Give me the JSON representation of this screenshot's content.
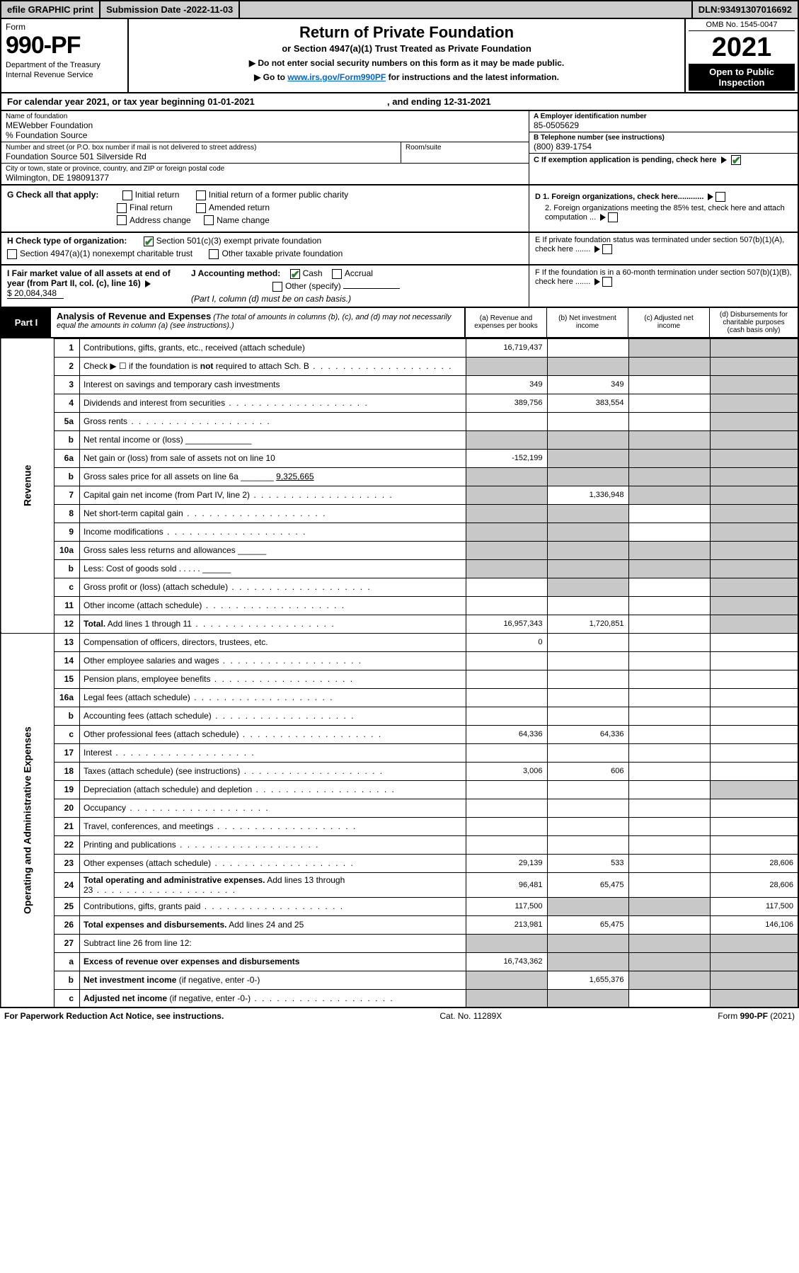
{
  "topbar": {
    "efile": "efile GRAPHIC print",
    "subdate_label": "Submission Date - ",
    "subdate": "2022-11-03",
    "dln_label": "DLN: ",
    "dln": "93491307016692"
  },
  "header": {
    "form_label": "Form",
    "form_num": "990-PF",
    "dept": "Department of the Treasury",
    "irs": "Internal Revenue Service",
    "title": "Return of Private Foundation",
    "subtitle": "or Section 4947(a)(1) Trust Treated as Private Foundation",
    "note1": "▶ Do not enter social security numbers on this form as it may be made public.",
    "note2_pre": "▶ Go to ",
    "note2_link": "www.irs.gov/Form990PF",
    "note2_post": " for instructions and the latest information.",
    "omb": "OMB No. 1545-0047",
    "year": "2021",
    "open": "Open to Public Inspection"
  },
  "cal": {
    "text_pre": "For calendar year 2021, or tax year beginning ",
    "begin": "01-01-2021",
    "mid": ", and ending ",
    "end": "12-31-2021"
  },
  "entity": {
    "name_lbl": "Name of foundation",
    "name": "MEWebber Foundation",
    "src": "% Foundation Source",
    "addr_lbl": "Number and street (or P.O. box number if mail is not delivered to street address)",
    "addr": "Foundation Source 501 Silverside Rd",
    "room_lbl": "Room/suite",
    "city_lbl": "City or town, state or province, country, and ZIP or foreign postal code",
    "city": "Wilmington, DE  198091377",
    "ein_lbl": "A Employer identification number",
    "ein": "85-0505629",
    "tel_lbl": "B Telephone number (see instructions)",
    "tel": "(800) 839-1754",
    "c_lbl": "C If exemption application is pending, check here"
  },
  "g": {
    "label": "G Check all that apply:",
    "o1": "Initial return",
    "o2": "Initial return of a former public charity",
    "o3": "Final return",
    "o4": "Amended return",
    "o5": "Address change",
    "o6": "Name change"
  },
  "d": {
    "d1": "D 1. Foreign organizations, check here............",
    "d2": "2. Foreign organizations meeting the 85% test, check here and attach computation ...",
    "e": "E  If private foundation status was terminated under section 507(b)(1)(A), check here .......",
    "f": "F  If the foundation is in a 60-month termination under section 507(b)(1)(B), check here ......."
  },
  "h": {
    "label": "H Check type of organization:",
    "o1": "Section 501(c)(3) exempt private foundation",
    "o2": "Section 4947(a)(1) nonexempt charitable trust",
    "o3": "Other taxable private foundation"
  },
  "i": {
    "label": "I Fair market value of all assets at end of year (from Part II, col. (c), line 16)",
    "value": "$  20,084,348"
  },
  "j": {
    "label": "J Accounting method:",
    "o1": "Cash",
    "o2": "Accrual",
    "o3": "Other (specify)",
    "note": "(Part I, column (d) must be on cash basis.)"
  },
  "part1": {
    "label": "Part I",
    "title": "Analysis of Revenue and Expenses",
    "title_note": " (The total of amounts in columns (b), (c), and (d) may not necessarily equal the amounts in column (a) (see instructions).)",
    "col_a": "(a)  Revenue and expenses per books",
    "col_b": "(b)  Net investment income",
    "col_c": "(c)  Adjusted net income",
    "col_d": "(d)  Disbursements for charitable purposes (cash basis only)"
  },
  "sides": {
    "rev": "Revenue",
    "exp": "Operating and Administrative Expenses"
  },
  "rows": [
    {
      "n": "1",
      "d": "Contributions, gifts, grants, etc., received (attach schedule)",
      "a": "16,719,437",
      "b": "",
      "c": "s",
      "dcol": "s"
    },
    {
      "n": "2",
      "d": "Check ▶ ☐ if the foundation is <b>not</b> required to attach Sch. B",
      "dots": true,
      "a": "s",
      "b": "s",
      "c": "s",
      "dcol": "s"
    },
    {
      "n": "3",
      "d": "Interest on savings and temporary cash investments",
      "a": "349",
      "b": "349",
      "c": "",
      "dcol": "s"
    },
    {
      "n": "4",
      "d": "Dividends and interest from securities",
      "dots": true,
      "a": "389,756",
      "b": "383,554",
      "c": "",
      "dcol": "s"
    },
    {
      "n": "5a",
      "d": "Gross rents",
      "dots": true,
      "a": "",
      "b": "",
      "c": "",
      "dcol": "s"
    },
    {
      "n": "b",
      "d": "Net rental income or (loss)  ______________",
      "a": "s",
      "b": "s",
      "c": "s",
      "dcol": "s"
    },
    {
      "n": "6a",
      "d": "Net gain or (loss) from sale of assets not on line 10",
      "a": "-152,199",
      "b": "s",
      "c": "s",
      "dcol": "s"
    },
    {
      "n": "b",
      "d": "Gross sales price for all assets on line 6a _______ <u>9,325,665</u>",
      "a": "s",
      "b": "s",
      "c": "s",
      "dcol": "s"
    },
    {
      "n": "7",
      "d": "Capital gain net income (from Part IV, line 2)",
      "dots": true,
      "a": "s",
      "b": "1,336,948",
      "c": "s",
      "dcol": "s"
    },
    {
      "n": "8",
      "d": "Net short-term capital gain",
      "dots": true,
      "a": "s",
      "b": "s",
      "c": "",
      "dcol": "s"
    },
    {
      "n": "9",
      "d": "Income modifications",
      "dots": true,
      "a": "s",
      "b": "s",
      "c": "",
      "dcol": "s"
    },
    {
      "n": "10a",
      "d": "Gross sales less returns and allowances  ______",
      "a": "s",
      "b": "s",
      "c": "s",
      "dcol": "s"
    },
    {
      "n": "b",
      "d": "Less: Cost of goods sold   .  .  .  .  .  ______",
      "a": "s",
      "b": "s",
      "c": "s",
      "dcol": "s"
    },
    {
      "n": "c",
      "d": "Gross profit or (loss) (attach schedule)",
      "dots": true,
      "a": "",
      "b": "s",
      "c": "",
      "dcol": "s"
    },
    {
      "n": "11",
      "d": "Other income (attach schedule)",
      "dots": true,
      "a": "",
      "b": "",
      "c": "",
      "dcol": "s"
    },
    {
      "n": "12",
      "d": "<b>Total.</b> Add lines 1 through 11",
      "dots": true,
      "a": "16,957,343",
      "b": "1,720,851",
      "c": "",
      "dcol": "s"
    },
    {
      "n": "13",
      "d": "Compensation of officers, directors, trustees, etc.",
      "a": "0",
      "b": "",
      "c": "",
      "dcol": ""
    },
    {
      "n": "14",
      "d": "Other employee salaries and wages",
      "dots": true,
      "a": "",
      "b": "",
      "c": "",
      "dcol": ""
    },
    {
      "n": "15",
      "d": "Pension plans, employee benefits",
      "dots": true,
      "a": "",
      "b": "",
      "c": "",
      "dcol": ""
    },
    {
      "n": "16a",
      "d": "Legal fees (attach schedule)",
      "dots": true,
      "a": "",
      "b": "",
      "c": "",
      "dcol": ""
    },
    {
      "n": "b",
      "d": "Accounting fees (attach schedule)",
      "dots": true,
      "a": "",
      "b": "",
      "c": "",
      "dcol": ""
    },
    {
      "n": "c",
      "d": "Other professional fees (attach schedule)",
      "dots": true,
      "a": "64,336",
      "b": "64,336",
      "c": "",
      "dcol": ""
    },
    {
      "n": "17",
      "d": "Interest",
      "dots": true,
      "a": "",
      "b": "",
      "c": "",
      "dcol": ""
    },
    {
      "n": "18",
      "d": "Taxes (attach schedule) (see instructions)",
      "dots": true,
      "a": "3,006",
      "b": "606",
      "c": "",
      "dcol": ""
    },
    {
      "n": "19",
      "d": "Depreciation (attach schedule) and depletion",
      "dots": true,
      "a": "",
      "b": "",
      "c": "",
      "dcol": "s"
    },
    {
      "n": "20",
      "d": "Occupancy",
      "dots": true,
      "a": "",
      "b": "",
      "c": "",
      "dcol": ""
    },
    {
      "n": "21",
      "d": "Travel, conferences, and meetings",
      "dots": true,
      "a": "",
      "b": "",
      "c": "",
      "dcol": ""
    },
    {
      "n": "22",
      "d": "Printing and publications",
      "dots": true,
      "a": "",
      "b": "",
      "c": "",
      "dcol": ""
    },
    {
      "n": "23",
      "d": "Other expenses (attach schedule)",
      "dots": true,
      "a": "29,139",
      "b": "533",
      "c": "",
      "dcol": "28,606"
    },
    {
      "n": "24",
      "d": "<b>Total operating and administrative expenses.</b> Add lines 13 through 23",
      "dots": true,
      "a": "96,481",
      "b": "65,475",
      "c": "",
      "dcol": "28,606"
    },
    {
      "n": "25",
      "d": "Contributions, gifts, grants paid",
      "dots": true,
      "a": "117,500",
      "b": "s",
      "c": "s",
      "dcol": "117,500"
    },
    {
      "n": "26",
      "d": "<b>Total expenses and disbursements.</b> Add lines 24 and 25",
      "a": "213,981",
      "b": "65,475",
      "c": "",
      "dcol": "146,106"
    },
    {
      "n": "27",
      "d": "Subtract line 26 from line 12:",
      "a": "s",
      "b": "s",
      "c": "s",
      "dcol": "s"
    },
    {
      "n": "a",
      "d": "<b>Excess of revenue over expenses and disbursements</b>",
      "a": "16,743,362",
      "b": "s",
      "c": "s",
      "dcol": "s"
    },
    {
      "n": "b",
      "d": "<b>Net investment income</b> (if negative, enter -0-)",
      "a": "s",
      "b": "1,655,376",
      "c": "s",
      "dcol": "s"
    },
    {
      "n": "c",
      "d": "<b>Adjusted net income</b> (if negative, enter -0-)",
      "dots": true,
      "a": "s",
      "b": "s",
      "c": "",
      "dcol": "s"
    }
  ],
  "footer": {
    "left": "For Paperwork Reduction Act Notice, see instructions.",
    "mid": "Cat. No. 11289X",
    "right": "Form 990-PF (2021)"
  },
  "colors": {
    "topbar_bg": "#cccccc",
    "shade": "#c8c8c8",
    "link": "#0066cc",
    "check_green": "#2e7d32"
  }
}
